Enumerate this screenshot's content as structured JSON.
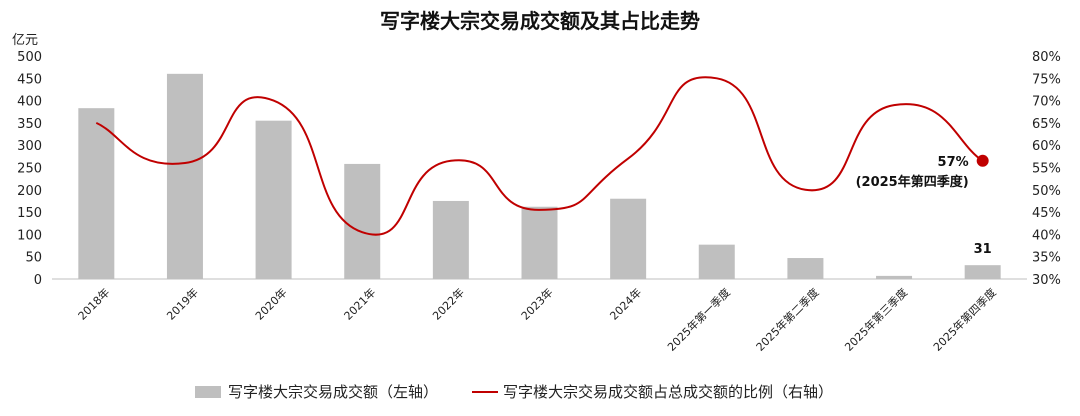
{
  "chart_data": {
    "type": "bar",
    "title": "写字楼大宗交易成交额及其占比走势",
    "left_axis_unit": "亿元",
    "left_axis_ticks": [
      "0",
      "50",
      "100",
      "150",
      "200",
      "250",
      "300",
      "350",
      "400",
      "450",
      "500"
    ],
    "right_axis_ticks": [
      "30%",
      "35%",
      "40%",
      "45%",
      "50%",
      "55%",
      "60%",
      "65%",
      "70%",
      "75%",
      "80%"
    ],
    "ylim_left": [
      0,
      500
    ],
    "ylim_right": [
      30,
      80
    ],
    "categories": [
      "2018年",
      "2019年",
      "2020年",
      "2021年",
      "2022年",
      "2023年",
      "2024年",
      "2025年第一季度",
      "2025年第二季度",
      "2025年第三季度",
      "2025年第四季度"
    ],
    "series": [
      {
        "name": "写字楼大宗交易成交额（左轴）",
        "kind": "bar",
        "axis": "left",
        "color": "#bfbfbf",
        "values": [
          383,
          460,
          355,
          258,
          175,
          162,
          180,
          77,
          47,
          7,
          31
        ]
      },
      {
        "name": "写字楼大宗交易成交额占总成交额的比例（右轴）",
        "kind": "line",
        "axis": "right",
        "color": "#c00000",
        "values": [
          65,
          56,
          70,
          40.5,
          56.5,
          45.5,
          57,
          75,
          50,
          69,
          56.5
        ]
      }
    ],
    "annotations": {
      "bar_last_value": "31",
      "line_last_value": "57%",
      "line_last_note": "(2025年第四季度)"
    },
    "grid": false,
    "legend_position": "bottom"
  }
}
